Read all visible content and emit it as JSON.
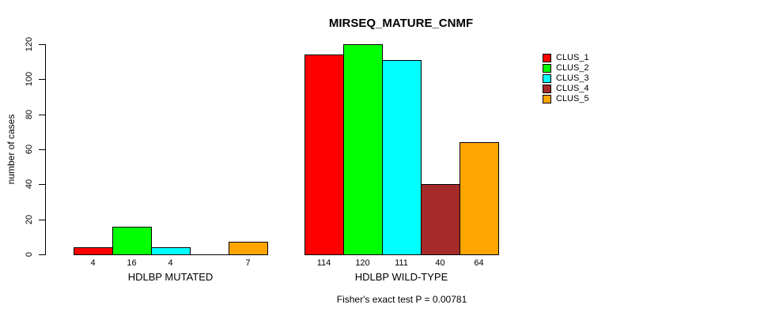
{
  "figure": {
    "background": "#ffffff"
  },
  "chart_data": {
    "type": "bar",
    "title": "MIRSEQ_MATURE_CNMF",
    "ylabel": "number of cases",
    "xlabel": "",
    "footnote": "Fisher's exact test P = 0.00781",
    "ylim": [
      0,
      120
    ],
    "yticks": [
      0,
      20,
      40,
      60,
      80,
      100,
      120
    ],
    "grid": false,
    "legend_position": "right",
    "bar_value_labels_shown": true,
    "categories": [
      "HDLBP MUTATED",
      "HDLBP WILD-TYPE"
    ],
    "series": [
      {
        "name": "CLUS_1",
        "color": "#ff0000",
        "values": [
          4,
          114
        ]
      },
      {
        "name": "CLUS_2",
        "color": "#00ff00",
        "values": [
          16,
          120
        ]
      },
      {
        "name": "CLUS_3",
        "color": "#00ffff",
        "values": [
          4,
          111
        ]
      },
      {
        "name": "CLUS_4",
        "color": "#a52a2a",
        "values": [
          0,
          40
        ]
      },
      {
        "name": "CLUS_5",
        "color": "#ffa500",
        "values": [
          7,
          64
        ]
      }
    ]
  }
}
